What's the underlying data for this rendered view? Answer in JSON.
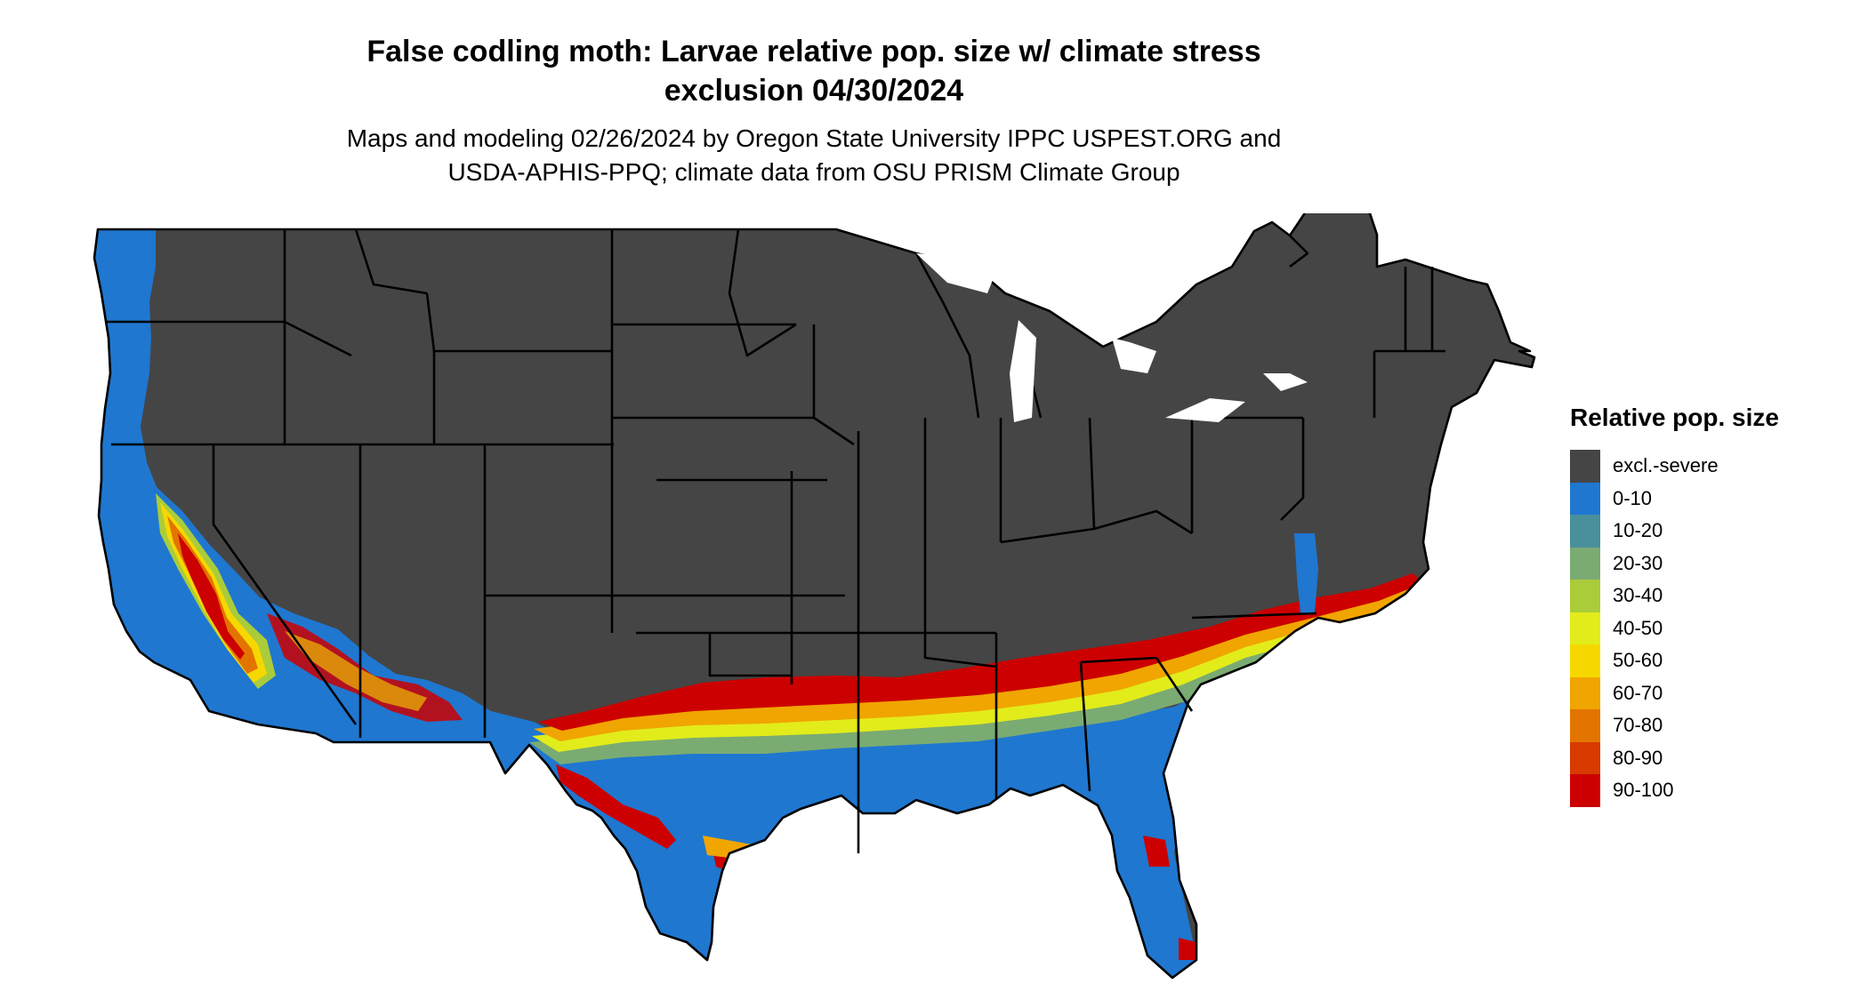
{
  "title": {
    "line1": "False codling moth: Larvae relative pop. size w/ climate stress",
    "line2": "exclusion 04/30/2024"
  },
  "subtitle": {
    "line1": "Maps and modeling 02/26/2024 by Oregon State University IPPC USPEST.ORG and",
    "line2": "USDA-APHIS-PPQ; climate data from OSU PRISM Climate Group"
  },
  "legend": {
    "title": "Relative pop. size",
    "items": [
      {
        "label": "excl.-severe",
        "color": "#454545"
      },
      {
        "label": "0-10",
        "color": "#1f77d0"
      },
      {
        "label": "10-20",
        "color": "#4a8f9c"
      },
      {
        "label": "20-30",
        "color": "#7aab72"
      },
      {
        "label": "30-40",
        "color": "#aacc3a"
      },
      {
        "label": "40-50",
        "color": "#e2ec1a"
      },
      {
        "label": "50-60",
        "color": "#f6d800"
      },
      {
        "label": "60-70",
        "color": "#f0a500"
      },
      {
        "label": "70-80",
        "color": "#e37400"
      },
      {
        "label": "80-90",
        "color": "#d83a00"
      },
      {
        "label": "90-100",
        "color": "#cc0000"
      }
    ]
  }
}
